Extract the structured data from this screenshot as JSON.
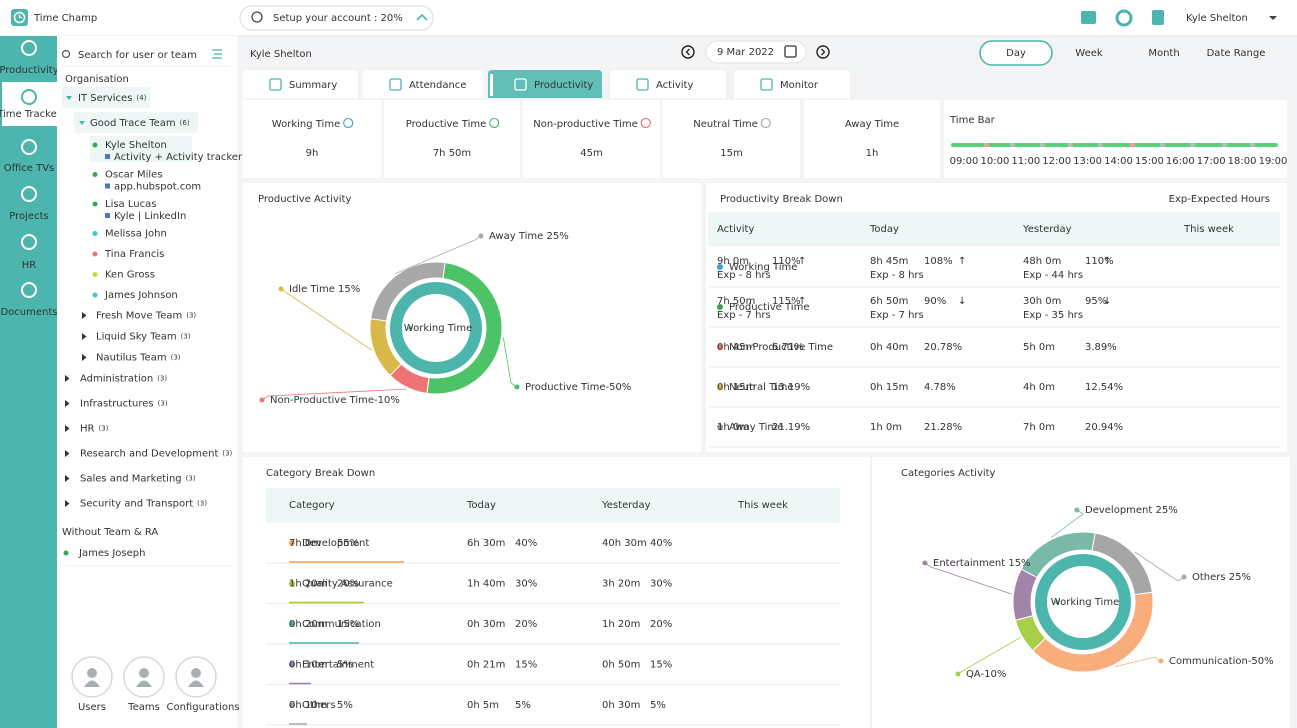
{
  "header": {
    "brand": "Time Champ",
    "setup": "Setup your account : 20%",
    "user": "Kyle Shelton"
  },
  "nav": [
    "Productivity",
    "Time Tracker",
    "Office TVs",
    "Projects",
    "HR",
    "Documents"
  ],
  "nav_active": 1,
  "sidebar": {
    "search": "Search for user or team",
    "org": "Organisation",
    "org_units": [
      {
        "label": "IT Services",
        "count": "(4)",
        "teams": [
          {
            "label": "Good Trace Team",
            "count": "(6)",
            "members": [
              {
                "name": "Kyle Shelton",
                "detail": "Activity + Activity tracker",
                "status": "#3aa655"
              },
              {
                "name": "Oscar Miles",
                "detail": "app.hubspot.com",
                "status": "#3aa655"
              },
              {
                "name": "Lisa Lucas",
                "detail": "Kyle | LinkedIn",
                "status": "#3aa655"
              },
              {
                "name": "Melissa John",
                "status": "#3fc7d6"
              },
              {
                "name": "Tina Francis",
                "status": "#ef7373"
              },
              {
                "name": "Ken Gross",
                "status": "#c6d93b"
              },
              {
                "name": "James Johnson",
                "status": "#3fc7d6"
              }
            ]
          },
          {
            "label": "Fresh Move Team",
            "count": "(3)"
          },
          {
            "label": "Liquid Sky Team",
            "count": "(3)"
          },
          {
            "label": "Nautilus Team",
            "count": "(3)"
          }
        ]
      },
      {
        "label": "Administration",
        "count": "(3)"
      },
      {
        "label": "Infrastructures",
        "count": "(3)"
      },
      {
        "label": "HR",
        "count": "(3)"
      },
      {
        "label": "Research and Development",
        "count": "(3)"
      },
      {
        "label": "Sales and Marketing",
        "count": "(3)"
      },
      {
        "label": "Security and Transport",
        "count": "(3)"
      }
    ],
    "no_team_title": "Without Team & RA",
    "no_team": [
      {
        "name": "James Joseph",
        "status": "#3aa655"
      }
    ],
    "actions": [
      "Users",
      "Teams",
      "Configurations"
    ]
  },
  "main": {
    "user": "Kyle Shelton",
    "date": "9 Mar 2022",
    "ranges": [
      "Day",
      "Week",
      "Month",
      "Date Range"
    ],
    "active_range": 0,
    "tabs": [
      "Summary",
      "Attendance",
      "Productivity",
      "Activity",
      "Monitor"
    ],
    "active_tab": 2,
    "stats": [
      {
        "label": "Working Time",
        "value": "9h",
        "color": "#3d9fd8"
      },
      {
        "label": "Productive Time",
        "value": "7h 50m",
        "color": "#45b86c"
      },
      {
        "label": "Non-productive Time",
        "value": "45m",
        "color": "#ea6b6b"
      },
      {
        "label": "Neutral Time",
        "value": "15m",
        "color": "#a3acb0"
      },
      {
        "label": "Away Time",
        "value": "1h",
        "color": "#a3acb0"
      }
    ],
    "time_bar": {
      "title": "Time Bar",
      "hours": [
        "09:00",
        "10:00",
        "11:00",
        "12:00",
        "13:00",
        "14:00",
        "15:00",
        "16:00",
        "17:00",
        "18:00",
        "19:00"
      ]
    },
    "productive_activity": {
      "title": "Productive Activity",
      "center": "Working Time",
      "segments": [
        {
          "label": "Away Time  25%",
          "value": 25,
          "color": "#a8a8a8"
        },
        {
          "label": "Productive Time-50%",
          "value": 50,
          "color": "#4cc366"
        },
        {
          "label": "Non-Productive Time-10%",
          "value": 10,
          "color": "#ef7373"
        },
        {
          "label": "Idle Time 15%",
          "value": 15,
          "color": "#d9b84a"
        }
      ]
    },
    "breakdown": {
      "title": "Productivity Break Down",
      "note": "Exp-Expected Hours",
      "columns": [
        "Activity",
        "Today",
        "Yesterday",
        "This week"
      ],
      "rows": [
        {
          "name": "Working Time",
          "color": "#3d9fd8",
          "cells": [
            {
              "time": "9h 0m",
              "exp": "Exp - 8 hrs",
              "pct": "110%",
              "trend": "↑",
              "trend_color": "#3aa655"
            },
            {
              "time": "8h 45m",
              "exp": "Exp - 8 hrs",
              "pct": "108%",
              "trend": "↑",
              "trend_color": "#3aa655"
            },
            {
              "time": "48h 0m",
              "exp": "Exp - 44 hrs",
              "pct": "110%",
              "trend": "↑",
              "trend_color": "#3aa655"
            }
          ]
        },
        {
          "name": "Productive Time",
          "color": "#3aa655",
          "cells": [
            {
              "time": "7h 50m",
              "exp": "Exp - 7 hrs",
              "pct": "115%",
              "trend": "↑",
              "trend_color": "#3aa655"
            },
            {
              "time": "6h 50m",
              "exp": "Exp - 7 hrs",
              "pct": "90%",
              "trend": "↓",
              "trend_color": "#e05a5a"
            },
            {
              "time": "30h 0m",
              "exp": "Exp - 35 hrs",
              "pct": "95%",
              "trend": "↓",
              "trend_color": "#e05a5a"
            }
          ]
        },
        {
          "name": "Non-Productive Time",
          "color": "#e05a5a",
          "cells": [
            {
              "time": "0h 45m",
              "pct": "6.71%"
            },
            {
              "time": "0h 40m",
              "pct": "20.78%"
            },
            {
              "time": "5h 0m",
              "pct": "3.89%"
            }
          ]
        },
        {
          "name": "Neutral Time",
          "color": "#a3acb0",
          "cells": [
            {
              "time": "0h 15m",
              "pct": "13.19%"
            },
            {
              "time": "0h 15m",
              "pct": "4.78%"
            },
            {
              "time": "4h 0m",
              "pct": "12.54%"
            }
          ]
        },
        {
          "name": "Away Time",
          "color": "#a3acb0",
          "cells": [
            {
              "time": "1h 0m",
              "pct": "21.19%"
            },
            {
              "time": "1h 0m",
              "pct": "21.28%"
            },
            {
              "time": "7h 0m",
              "pct": "20.94%"
            }
          ]
        }
      ],
      "dots": [
        "#3d9fd8",
        "#3aa655",
        "#ef7373",
        "#d9b84a",
        "#9a9a9a"
      ]
    },
    "category_breakdown": {
      "title": "Category Break Down",
      "columns": [
        "Category",
        "Today",
        "Yesterday",
        "This week"
      ],
      "rows": [
        {
          "name": "Development",
          "color": "#f0a35e",
          "cells": [
            {
              "time": "7h 0m",
              "pct": "55%"
            },
            {
              "time": "6h 30m",
              "pct": "40%"
            },
            {
              "time": "40h 30m",
              "pct": "40%"
            }
          ]
        },
        {
          "name": "Quality Assurance",
          "color": "#a6c63b",
          "cells": [
            {
              "time": "1h 20m",
              "pct": "20%"
            },
            {
              "time": "1h 40m",
              "pct": "30%"
            },
            {
              "time": "3h 20m",
              "pct": "30%"
            }
          ]
        },
        {
          "name": "Communication",
          "color": "#4db6ac",
          "cells": [
            {
              "time": "0h 20m",
              "pct": "15%"
            },
            {
              "time": "0h 30m",
              "pct": "20%"
            },
            {
              "time": "1h 20m",
              "pct": "20%"
            }
          ]
        },
        {
          "name": "Entertainment",
          "color": "#9b7fb0",
          "cells": [
            {
              "time": "0h 10m",
              "pct": "5%"
            },
            {
              "time": "0h 21m",
              "pct": "15%"
            },
            {
              "time": "0h 50m",
              "pct": "15%"
            }
          ]
        },
        {
          "name": "Others",
          "color": "#a3acb0",
          "cells": [
            {
              "time": "0h 10m",
              "pct": "5%"
            },
            {
              "time": "0h 5m",
              "pct": "5%"
            },
            {
              "time": "0h 30m",
              "pct": "5%"
            }
          ]
        }
      ]
    },
    "categories_activity": {
      "title": "Categories Activity",
      "center": "Working Time",
      "segments": [
        {
          "label": "Development  25%",
          "value": 25,
          "color": "#7ab8a8"
        },
        {
          "label": "Others  25%",
          "value": 25,
          "color": "#a6a6a6"
        },
        {
          "label": "Communication-50%",
          "value": 50,
          "color": "#f8ad7a"
        },
        {
          "label": "QA-10%",
          "value": 10,
          "color": "#a8cf4a"
        },
        {
          "label": "Entertainment 15%",
          "value": 15,
          "color": "#a184a8"
        }
      ]
    }
  }
}
